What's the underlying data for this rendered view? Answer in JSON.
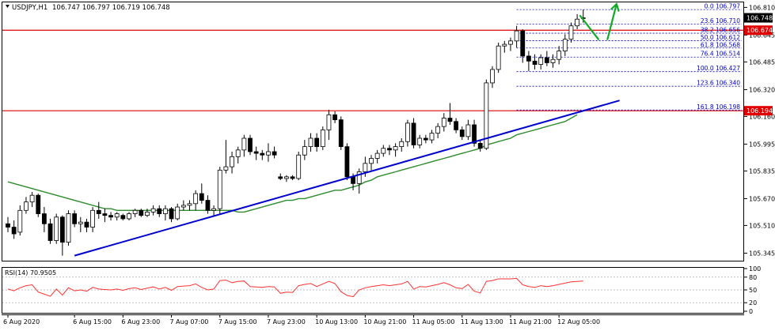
{
  "header": {
    "symbol": "USDJPY,H1",
    "ohlc": "106.747 106.797 106.719 106.748"
  },
  "rsi_header": "RSI(14) 70.9505",
  "colors": {
    "candle_stroke": "#000000",
    "bull_fill": "#ffffff",
    "bear_fill": "#000000",
    "trendline": "#0000cc",
    "moving_average": "#2e8b2e",
    "horizontal_level": "#e00000",
    "fibonacci": "#0000cc",
    "rsi_line": "#ff3333",
    "arrows": "#11aa22",
    "price_badge_bg": "#000000",
    "level_badge_bg": "#e00000"
  },
  "price_badges": [
    {
      "text": "106.748",
      "kind": "current",
      "value": 106.748
    },
    {
      "text": "106.674",
      "kind": "level",
      "value": 106.674
    },
    {
      "text": "106.194",
      "kind": "level",
      "value": 106.194
    }
  ],
  "chart_data": [
    {
      "type": "candlestick",
      "title": "USDJPY,H1",
      "y_axis_ticks": [
        "106.810",
        "106.645",
        "106.485",
        "106.320",
        "106.160",
        "105.995",
        "105.835",
        "105.670",
        "105.510",
        "105.345"
      ],
      "ylim": [
        105.3,
        106.84
      ],
      "x_axis_ticks": [
        {
          "label": "6 Aug 2020",
          "index": 0
        },
        {
          "label": "6 Aug 15:00",
          "index": 11
        },
        {
          "label": "6 Aug 23:00",
          "index": 19
        },
        {
          "label": "7 Aug 07:00",
          "index": 27
        },
        {
          "label": "7 Aug 15:00",
          "index": 35
        },
        {
          "label": "7 Aug 23:00",
          "index": 43
        },
        {
          "label": "10 Aug 13:00",
          "index": 51
        },
        {
          "label": "10 Aug 21:00",
          "index": 59
        },
        {
          "label": "11 Aug 05:00",
          "index": 67
        },
        {
          "label": "11 Aug 13:00",
          "index": 75
        },
        {
          "label": "11 Aug 21:00",
          "index": 83
        },
        {
          "label": "12 Aug 05:00",
          "index": 91
        }
      ],
      "candles": [
        {
          "o": 105.52,
          "h": 105.56,
          "l": 105.47,
          "c": 105.5
        },
        {
          "o": 105.5,
          "h": 105.54,
          "l": 105.43,
          "c": 105.46
        },
        {
          "o": 105.47,
          "h": 105.63,
          "l": 105.45,
          "c": 105.6
        },
        {
          "o": 105.6,
          "h": 105.68,
          "l": 105.58,
          "c": 105.65
        },
        {
          "o": 105.65,
          "h": 105.71,
          "l": 105.62,
          "c": 105.69
        },
        {
          "o": 105.69,
          "h": 105.7,
          "l": 105.56,
          "c": 105.58
        },
        {
          "o": 105.58,
          "h": 105.62,
          "l": 105.47,
          "c": 105.52
        },
        {
          "o": 105.52,
          "h": 105.55,
          "l": 105.4,
          "c": 105.42
        },
        {
          "o": 105.42,
          "h": 105.58,
          "l": 105.4,
          "c": 105.56
        },
        {
          "o": 105.56,
          "h": 105.57,
          "l": 105.33,
          "c": 105.41
        },
        {
          "o": 105.41,
          "h": 105.6,
          "l": 105.39,
          "c": 105.58
        },
        {
          "o": 105.58,
          "h": 105.6,
          "l": 105.5,
          "c": 105.52
        },
        {
          "o": 105.52,
          "h": 105.56,
          "l": 105.47,
          "c": 105.53
        },
        {
          "o": 105.53,
          "h": 105.55,
          "l": 105.47,
          "c": 105.5
        },
        {
          "o": 105.5,
          "h": 105.62,
          "l": 105.47,
          "c": 105.6
        },
        {
          "o": 105.6,
          "h": 105.65,
          "l": 105.55,
          "c": 105.58
        },
        {
          "o": 105.58,
          "h": 105.61,
          "l": 105.53,
          "c": 105.57
        },
        {
          "o": 105.57,
          "h": 105.59,
          "l": 105.54,
          "c": 105.56
        },
        {
          "o": 105.56,
          "h": 105.59,
          "l": 105.54,
          "c": 105.58
        },
        {
          "o": 105.57,
          "h": 105.58,
          "l": 105.54,
          "c": 105.55
        },
        {
          "o": 105.55,
          "h": 105.59,
          "l": 105.54,
          "c": 105.58
        },
        {
          "o": 105.58,
          "h": 105.61,
          "l": 105.56,
          "c": 105.6
        },
        {
          "o": 105.6,
          "h": 105.61,
          "l": 105.56,
          "c": 105.57
        },
        {
          "o": 105.57,
          "h": 105.61,
          "l": 105.56,
          "c": 105.59
        },
        {
          "o": 105.59,
          "h": 105.63,
          "l": 105.57,
          "c": 105.61
        },
        {
          "o": 105.61,
          "h": 105.63,
          "l": 105.56,
          "c": 105.58
        },
        {
          "o": 105.58,
          "h": 105.63,
          "l": 105.54,
          "c": 105.61
        },
        {
          "o": 105.61,
          "h": 105.62,
          "l": 105.53,
          "c": 105.55
        },
        {
          "o": 105.55,
          "h": 105.64,
          "l": 105.54,
          "c": 105.62
        },
        {
          "o": 105.62,
          "h": 105.66,
          "l": 105.6,
          "c": 105.63
        },
        {
          "o": 105.63,
          "h": 105.66,
          "l": 105.6,
          "c": 105.64
        },
        {
          "o": 105.64,
          "h": 105.72,
          "l": 105.6,
          "c": 105.7
        },
        {
          "o": 105.7,
          "h": 105.76,
          "l": 105.64,
          "c": 105.66
        },
        {
          "o": 105.66,
          "h": 105.69,
          "l": 105.58,
          "c": 105.6
        },
        {
          "o": 105.6,
          "h": 105.63,
          "l": 105.57,
          "c": 105.61
        },
        {
          "o": 105.61,
          "h": 105.86,
          "l": 105.58,
          "c": 105.84
        },
        {
          "o": 105.84,
          "h": 106.02,
          "l": 105.82,
          "c": 105.86
        },
        {
          "o": 105.86,
          "h": 105.95,
          "l": 105.82,
          "c": 105.92
        },
        {
          "o": 105.92,
          "h": 105.98,
          "l": 105.88,
          "c": 105.96
        },
        {
          "o": 105.96,
          "h": 106.05,
          "l": 105.92,
          "c": 106.03
        },
        {
          "o": 106.03,
          "h": 106.05,
          "l": 105.93,
          "c": 105.95
        },
        {
          "o": 105.95,
          "h": 105.98,
          "l": 105.9,
          "c": 105.94
        },
        {
          "o": 105.94,
          "h": 105.96,
          "l": 105.9,
          "c": 105.93
        },
        {
          "o": 105.93,
          "h": 106.0,
          "l": 105.89,
          "c": 105.95
        },
        {
          "o": 105.95,
          "h": 105.98,
          "l": 105.91,
          "c": 105.93
        },
        {
          "o": 105.8,
          "h": 105.82,
          "l": 105.78,
          "c": 105.79
        },
        {
          "o": 105.79,
          "h": 105.81,
          "l": 105.77,
          "c": 105.8
        },
        {
          "o": 105.8,
          "h": 105.81,
          "l": 105.78,
          "c": 105.79
        },
        {
          "o": 105.79,
          "h": 105.95,
          "l": 105.78,
          "c": 105.93
        },
        {
          "o": 105.93,
          "h": 106.02,
          "l": 105.9,
          "c": 105.98
        },
        {
          "o": 105.98,
          "h": 106.06,
          "l": 105.95,
          "c": 106.03
        },
        {
          "o": 106.03,
          "h": 106.06,
          "l": 105.95,
          "c": 105.98
        },
        {
          "o": 105.98,
          "h": 106.1,
          "l": 105.96,
          "c": 106.08
        },
        {
          "o": 106.08,
          "h": 106.2,
          "l": 106.02,
          "c": 106.17
        },
        {
          "o": 106.17,
          "h": 106.19,
          "l": 106.12,
          "c": 106.14
        },
        {
          "o": 106.14,
          "h": 106.16,
          "l": 105.96,
          "c": 105.98
        },
        {
          "o": 105.98,
          "h": 106.0,
          "l": 105.78,
          "c": 105.8
        },
        {
          "o": 105.8,
          "h": 105.82,
          "l": 105.72,
          "c": 105.76
        },
        {
          "o": 105.76,
          "h": 105.85,
          "l": 105.7,
          "c": 105.83
        },
        {
          "o": 105.83,
          "h": 105.92,
          "l": 105.8,
          "c": 105.88
        },
        {
          "o": 105.88,
          "h": 105.93,
          "l": 105.84,
          "c": 105.91
        },
        {
          "o": 105.91,
          "h": 105.96,
          "l": 105.88,
          "c": 105.94
        },
        {
          "o": 105.94,
          "h": 105.99,
          "l": 105.92,
          "c": 105.97
        },
        {
          "o": 105.97,
          "h": 105.99,
          "l": 105.93,
          "c": 105.96
        },
        {
          "o": 105.96,
          "h": 106.0,
          "l": 105.92,
          "c": 105.98
        },
        {
          "o": 105.98,
          "h": 106.03,
          "l": 105.95,
          "c": 106.01
        },
        {
          "o": 106.01,
          "h": 106.14,
          "l": 105.98,
          "c": 106.12
        },
        {
          "o": 106.12,
          "h": 106.15,
          "l": 105.97,
          "c": 105.99
        },
        {
          "o": 105.99,
          "h": 106.05,
          "l": 105.97,
          "c": 106.03
        },
        {
          "o": 106.03,
          "h": 106.05,
          "l": 106.0,
          "c": 106.02
        },
        {
          "o": 106.02,
          "h": 106.08,
          "l": 106.0,
          "c": 106.06
        },
        {
          "o": 106.06,
          "h": 106.12,
          "l": 106.03,
          "c": 106.1
        },
        {
          "o": 106.1,
          "h": 106.18,
          "l": 106.07,
          "c": 106.15
        },
        {
          "o": 106.15,
          "h": 106.24,
          "l": 106.11,
          "c": 106.13
        },
        {
          "o": 106.13,
          "h": 106.15,
          "l": 106.06,
          "c": 106.08
        },
        {
          "o": 106.08,
          "h": 106.1,
          "l": 106.02,
          "c": 106.04
        },
        {
          "o": 106.04,
          "h": 106.14,
          "l": 106.02,
          "c": 106.11
        },
        {
          "o": 106.11,
          "h": 106.14,
          "l": 105.98,
          "c": 106.0
        },
        {
          "o": 106.0,
          "h": 106.02,
          "l": 105.95,
          "c": 105.97
        },
        {
          "o": 105.97,
          "h": 106.38,
          "l": 105.96,
          "c": 106.36
        },
        {
          "o": 106.36,
          "h": 106.46,
          "l": 106.33,
          "c": 106.44
        },
        {
          "o": 106.44,
          "h": 106.6,
          "l": 106.42,
          "c": 106.58
        },
        {
          "o": 106.58,
          "h": 106.61,
          "l": 106.54,
          "c": 106.59
        },
        {
          "o": 106.59,
          "h": 106.63,
          "l": 106.55,
          "c": 106.61
        },
        {
          "o": 106.61,
          "h": 106.7,
          "l": 106.57,
          "c": 106.67
        },
        {
          "o": 106.67,
          "h": 106.68,
          "l": 106.48,
          "c": 106.52
        },
        {
          "o": 106.52,
          "h": 106.55,
          "l": 106.43,
          "c": 106.49
        },
        {
          "o": 106.49,
          "h": 106.53,
          "l": 106.44,
          "c": 106.47
        },
        {
          "o": 106.47,
          "h": 106.53,
          "l": 106.44,
          "c": 106.51
        },
        {
          "o": 106.51,
          "h": 106.55,
          "l": 106.46,
          "c": 106.48
        },
        {
          "o": 106.48,
          "h": 106.53,
          "l": 106.45,
          "c": 106.5
        },
        {
          "o": 106.5,
          "h": 106.58,
          "l": 106.47,
          "c": 106.55
        },
        {
          "o": 106.55,
          "h": 106.65,
          "l": 106.52,
          "c": 106.62
        },
        {
          "o": 106.62,
          "h": 106.72,
          "l": 106.6,
          "c": 106.7
        },
        {
          "o": 106.7,
          "h": 106.77,
          "l": 106.68,
          "c": 106.74
        },
        {
          "o": 106.747,
          "h": 106.797,
          "l": 106.719,
          "c": 106.748
        }
      ],
      "moving_average": [
        105.77,
        105.76,
        105.75,
        105.74,
        105.73,
        105.72,
        105.71,
        105.7,
        105.69,
        105.68,
        105.67,
        105.66,
        105.65,
        105.64,
        105.63,
        105.62,
        105.61,
        105.61,
        105.6,
        105.6,
        105.6,
        105.6,
        105.6,
        105.6,
        105.6,
        105.6,
        105.6,
        105.6,
        105.6,
        105.6,
        105.6,
        105.6,
        105.6,
        105.6,
        105.6,
        105.6,
        105.6,
        105.6,
        105.59,
        105.59,
        105.6,
        105.61,
        105.62,
        105.63,
        105.64,
        105.65,
        105.66,
        105.66,
        105.67,
        105.67,
        105.68,
        105.69,
        105.7,
        105.71,
        105.72,
        105.72,
        105.73,
        105.74,
        105.75,
        105.77,
        105.78,
        105.8,
        105.81,
        105.82,
        105.83,
        105.84,
        105.85,
        105.86,
        105.87,
        105.88,
        105.89,
        105.9,
        105.91,
        105.92,
        105.93,
        105.94,
        105.95,
        105.96,
        105.97,
        105.99,
        106.0,
        106.01,
        106.02,
        106.03,
        106.05,
        106.06,
        106.07,
        106.08,
        106.09,
        106.1,
        106.11,
        106.12,
        106.13,
        106.15,
        106.17
      ],
      "trendline": {
        "x0": 11.0,
        "y0": 105.33,
        "x1": 101.0,
        "y1": 106.255
      },
      "horizontal_levels": [
        106.674,
        106.194
      ],
      "fibonacci": [
        {
          "label": "0.0 106.797",
          "value": 106.797
        },
        {
          "label": "23.6 106.710",
          "value": 106.71
        },
        {
          "label": "38.2 106.656",
          "value": 106.656
        },
        {
          "label": "50.0 106.612",
          "value": 106.612
        },
        {
          "label": "61.8 106.568",
          "value": 106.568
        },
        {
          "label": "76.4 106.514",
          "value": 106.514
        },
        {
          "label": "100.0 106.427",
          "value": 106.427
        },
        {
          "label": "123.6 106.340",
          "value": 106.34
        },
        {
          "label": "161.8 106.198",
          "value": 106.198
        }
      ],
      "fib_start_index": 84,
      "arrows": [
        {
          "direction": "down",
          "from": [
            94.5,
            106.76
          ],
          "to": [
            97.5,
            106.62
          ]
        },
        {
          "direction": "up",
          "from": [
            99.0,
            106.62
          ],
          "to": [
            100.5,
            106.83
          ]
        }
      ]
    },
    {
      "type": "line",
      "title": "RSI(14) 70.9505",
      "y_axis_ticks": [
        "100",
        "80",
        "50",
        "20",
        "0"
      ],
      "ylim": [
        0,
        100
      ],
      "levels": [
        80,
        50,
        20
      ],
      "values": [
        52,
        48,
        55,
        60,
        62,
        45,
        40,
        35,
        52,
        38,
        55,
        48,
        50,
        47,
        56,
        52,
        51,
        50,
        52,
        49,
        53,
        55,
        51,
        54,
        57,
        52,
        56,
        49,
        58,
        59,
        60,
        64,
        56,
        50,
        52,
        72,
        73,
        67,
        70,
        71,
        58,
        57,
        56,
        58,
        57,
        42,
        45,
        44,
        60,
        63,
        65,
        58,
        64,
        70,
        65,
        46,
        37,
        34,
        50,
        55,
        58,
        60,
        62,
        60,
        62,
        64,
        70,
        52,
        58,
        57,
        60,
        63,
        67,
        62,
        55,
        53,
        63,
        47,
        43,
        70,
        72,
        76,
        76,
        76,
        77,
        62,
        58,
        56,
        60,
        58,
        60,
        63,
        66,
        69,
        70,
        71
      ]
    }
  ]
}
